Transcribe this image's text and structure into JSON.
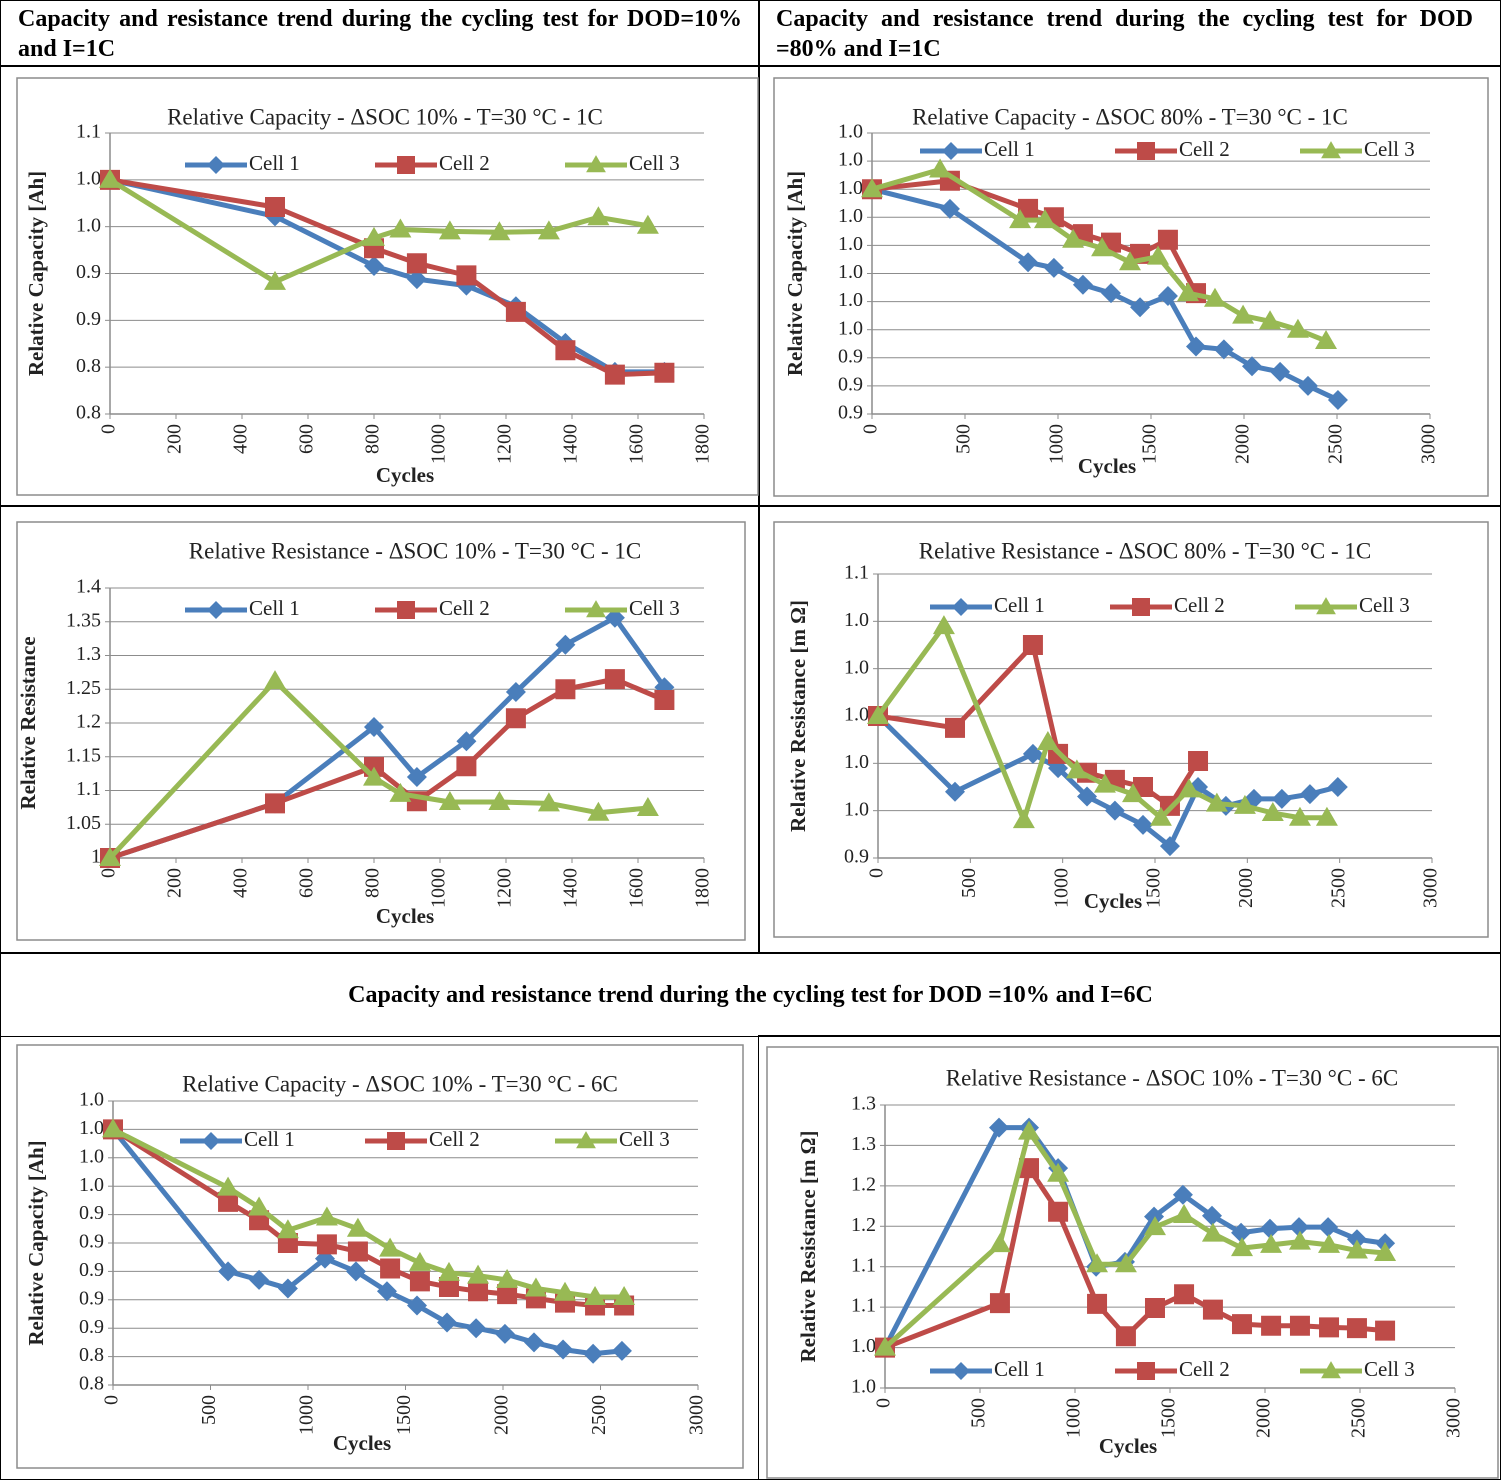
{
  "headers": [
    "Capacity and resistance trend during the cycling test for DOD=10% and I=1C",
    "Capacity and resistance trend during the cycling test for DOD =80% and I=1C",
    "Capacity and resistance trend during the cycling test for DOD =10% and I=6C"
  ],
  "chart_data": [
    {
      "type": "line",
      "title": "Relative Capacity - ΔSOC 10% - T=30 °C - 1C",
      "x_label": "Cycles",
      "y_label": "Relative Capacity [Ah]",
      "xlim": [
        0,
        1800
      ],
      "xticks": [
        0,
        200,
        400,
        600,
        800,
        1000,
        1200,
        1400,
        1600,
        1800
      ],
      "ylim": [
        0.8,
        1.1
      ],
      "yticks": [
        0.8,
        {
          "value": 0.85,
          "label": "0.8"
        },
        0.9,
        {
          "value": 0.95,
          "label": "0.9"
        },
        {
          "value": 1,
          "label": "1.0"
        },
        {
          "value": 1.05,
          "label": "1.0"
        },
        1.1
      ],
      "grid": true,
      "series": [
        {
          "name": "Cell 1",
          "color": "#4a7ebb",
          "marker": "diamond",
          "x": [
            0,
            500,
            800,
            930,
            1080,
            1230,
            1380,
            1530,
            1680
          ],
          "values": [
            1.05,
            1.011,
            0.958,
            0.944,
            0.937,
            0.915,
            0.876,
            0.845,
            0.845
          ]
        },
        {
          "name": "Cell 2",
          "color": "#be4b48",
          "marker": "square",
          "x": [
            0,
            500,
            800,
            930,
            1080,
            1230,
            1380,
            1530,
            1680
          ],
          "values": [
            1.05,
            1.021,
            0.977,
            0.961,
            0.948,
            0.909,
            0.868,
            0.842,
            0.844
          ]
        },
        {
          "name": "Cell 3",
          "color": "#98b954",
          "marker": "triangle",
          "x": [
            0,
            500,
            800,
            880,
            1030,
            1180,
            1330,
            1480,
            1630
          ],
          "values": [
            1.05,
            0.941,
            0.988,
            0.997,
            0.995,
            0.994,
            0.995,
            1.01,
            1.001
          ]
        }
      ]
    },
    {
      "type": "line",
      "title": "Relative Capacity - ΔSOC 80% - T=30 °C - 1C",
      "x_label": "Cycles",
      "y_label": "Relative Capacity [Ah]",
      "xlim": [
        0,
        3000
      ],
      "xticks": [
        0,
        500,
        1000,
        1500,
        2000,
        2500,
        3000
      ],
      "ylim": [
        0.92,
        1.02
      ],
      "yticks": [
        {
          "value": 0.92,
          "label": "0.9"
        },
        {
          "value": 0.93,
          "label": "0.9"
        },
        {
          "value": 0.94,
          "label": "0.9"
        },
        {
          "value": 0.95,
          "label": "1.0"
        },
        {
          "value": 0.96,
          "label": "1.0"
        },
        {
          "value": 0.97,
          "label": "1.0"
        },
        {
          "value": 0.98,
          "label": "1.0"
        },
        {
          "value": 0.99,
          "label": "1.0"
        },
        {
          "value": 1,
          "label": "1.0"
        },
        {
          "value": 1.01,
          "label": "1.0"
        },
        {
          "value": 1.02,
          "label": "1.0"
        }
      ],
      "grid": true,
      "series": [
        {
          "name": "Cell 1",
          "color": "#4a7ebb",
          "marker": "diamond",
          "x": [
            0,
            419,
            839,
            978,
            1134,
            1285,
            1441,
            1591,
            1742,
            1892,
            2043,
            2194,
            2344,
            2505
          ],
          "values": [
            1.0,
            0.993,
            0.974,
            0.972,
            0.966,
            0.963,
            0.958,
            0.962,
            0.944,
            0.943,
            0.937,
            0.935,
            0.93,
            0.925
          ]
        },
        {
          "name": "Cell 2",
          "color": "#be4b48",
          "marker": "square",
          "x": [
            0,
            419,
            839,
            978,
            1134,
            1285,
            1441,
            1591,
            1742
          ],
          "values": [
            1.0,
            1.003,
            0.993,
            0.99,
            0.984,
            0.981,
            0.977,
            0.982,
            0.963
          ]
        },
        {
          "name": "Cell 3",
          "color": "#98b954",
          "marker": "triangle",
          "x": [
            0,
            366,
            796,
            930,
            1081,
            1237,
            1387,
            1538,
            1699,
            1844,
            1995,
            2140,
            2290,
            2441
          ],
          "values": [
            1.0,
            1.007,
            0.989,
            0.989,
            0.982,
            0.979,
            0.974,
            0.976,
            0.963,
            0.961,
            0.955,
            0.953,
            0.95,
            0.946
          ]
        }
      ]
    },
    {
      "type": "line",
      "title": "Relative Resistance - ΔSOC 10% - T=30 °C - 1C",
      "x_label": "Cycles",
      "y_label": "Relative Resistance",
      "xlim": [
        0,
        1800
      ],
      "xticks": [
        0,
        200,
        400,
        600,
        800,
        1000,
        1200,
        1400,
        1600,
        1800
      ],
      "ylim": [
        1,
        1.4
      ],
      "yticks": [
        1,
        1.05,
        1.1,
        1.15,
        1.2,
        1.25,
        1.3,
        1.35,
        1.4
      ],
      "grid": true,
      "series": [
        {
          "name": "Cell 1",
          "color": "#4a7ebb",
          "marker": "diamond",
          "x": [
            0,
            500,
            800,
            930,
            1080,
            1230,
            1380,
            1530,
            1680
          ],
          "values": [
            1.0,
            1.081,
            1.194,
            1.12,
            1.173,
            1.246,
            1.316,
            1.356,
            1.253
          ]
        },
        {
          "name": "Cell 2",
          "color": "#be4b48",
          "marker": "square",
          "x": [
            0,
            500,
            800,
            930,
            1080,
            1230,
            1380,
            1530,
            1680
          ],
          "values": [
            1.0,
            1.081,
            1.135,
            1.084,
            1.136,
            1.207,
            1.25,
            1.265,
            1.234
          ]
        },
        {
          "name": "Cell 3",
          "color": "#98b954",
          "marker": "triangle",
          "x": [
            0,
            500,
            800,
            880,
            1030,
            1180,
            1330,
            1480,
            1630
          ],
          "values": [
            1.0,
            1.262,
            1.119,
            1.095,
            1.083,
            1.083,
            1.081,
            1.067,
            1.074
          ]
        }
      ]
    },
    {
      "type": "line",
      "title": "Relative Resistance - ΔSOC 80% - T=30 °C - 1C",
      "x_label": "Cycles",
      "y_label": "Relative Resistance [m Ω]",
      "xlim": [
        0,
        3000
      ],
      "xticks": [
        0,
        500,
        1000,
        1500,
        2000,
        2500,
        3000
      ],
      "ylim": [
        0.94,
        1.06
      ],
      "yticks": [
        {
          "value": 0.94,
          "label": "0.9"
        },
        {
          "value": 0.96,
          "label": "1.0"
        },
        {
          "value": 0.98,
          "label": "1.0"
        },
        {
          "value": 1,
          "label": "1.0"
        },
        {
          "value": 1.02,
          "label": "1.0"
        },
        {
          "value": 1.04,
          "label": "1.0"
        },
        {
          "value": 1.06,
          "label": "1.1"
        }
      ],
      "grid": true,
      "series": [
        {
          "name": "Cell 1",
          "color": "#4a7ebb",
          "marker": "diamond",
          "x": [
            0,
            417,
            839,
            975,
            1132,
            1283,
            1435,
            1581,
            1733,
            1884,
            2036,
            2187,
            2339,
            2490
          ],
          "values": [
            1.0,
            0.968,
            0.984,
            0.978,
            0.966,
            0.96,
            0.954,
            0.945,
            0.97,
            0.962,
            0.965,
            0.965,
            0.967,
            0.97
          ]
        },
        {
          "name": "Cell 2",
          "color": "#be4b48",
          "marker": "square",
          "x": [
            0,
            417,
            839,
            975,
            1132,
            1283,
            1435,
            1581,
            1733
          ],
          "values": [
            1.0,
            0.995,
            1.03,
            0.984,
            0.976,
            0.973,
            0.97,
            0.962,
            0.981
          ]
        },
        {
          "name": "Cell 3",
          "color": "#98b954",
          "marker": "triangle",
          "x": [
            0,
            357,
            790,
            920,
            1077,
            1229,
            1381,
            1532,
            1684,
            1835,
            1987,
            2138,
            2285,
            2431
          ],
          "values": [
            1.0,
            1.038,
            0.956,
            0.989,
            0.977,
            0.971,
            0.967,
            0.957,
            0.969,
            0.963,
            0.962,
            0.959,
            0.957,
            0.957
          ]
        }
      ]
    },
    {
      "type": "line",
      "title": "Relative Capacity - ΔSOC 10% - T=30 °C - 6C",
      "x_label": "Cycles",
      "y_label": "Relative Capacity [Ah]",
      "xlim": [
        0,
        3000
      ],
      "xticks": [
        0,
        500,
        1000,
        1500,
        2000,
        2500,
        3000
      ],
      "ylim": [
        0.82,
        1.02
      ],
      "yticks": [
        {
          "value": 0.82,
          "label": "0.8"
        },
        {
          "value": 0.84,
          "label": "0.8"
        },
        {
          "value": 0.86,
          "label": "0.9"
        },
        {
          "value": 0.88,
          "label": "0.9"
        },
        0.9,
        {
          "value": 0.92,
          "label": "0.9"
        },
        {
          "value": 0.94,
          "label": "0.9"
        },
        {
          "value": 0.96,
          "label": "1.0"
        },
        {
          "value": 0.98,
          "label": "1.0"
        },
        {
          "value": 1,
          "label": "1.0"
        },
        {
          "value": 1.02,
          "label": "1.0"
        }
      ],
      "grid": true,
      "series": [
        {
          "name": "Cell 1",
          "color": "#4a7ebb",
          "marker": "diamond",
          "x": [
            0,
            590,
            749,
            897,
            1087,
            1246,
            1405,
            1559,
            1713,
            1862,
            2010,
            2159,
            2308,
            2462,
            2610
          ],
          "values": [
            1.0,
            0.9,
            0.894,
            0.888,
            0.909,
            0.9,
            0.886,
            0.876,
            0.864,
            0.86,
            0.856,
            0.85,
            0.845,
            0.842,
            0.844
          ]
        },
        {
          "name": "Cell 2",
          "color": "#be4b48",
          "marker": "square",
          "x": [
            0,
            590,
            749,
            897,
            1097,
            1256,
            1421,
            1574,
            1723,
            1872,
            2021,
            2169,
            2318,
            2472,
            2621
          ],
          "values": [
            1.0,
            0.949,
            0.936,
            0.92,
            0.919,
            0.914,
            0.902,
            0.893,
            0.889,
            0.886,
            0.884,
            0.881,
            0.878,
            0.876,
            0.876
          ]
        },
        {
          "name": "Cell 3",
          "color": "#98b954",
          "marker": "triangle",
          "x": [
            0,
            590,
            749,
            897,
            1097,
            1256,
            1421,
            1574,
            1723,
            1872,
            2021,
            2169,
            2318,
            2472,
            2621
          ],
          "values": [
            1.0,
            0.959,
            0.945,
            0.929,
            0.938,
            0.93,
            0.916,
            0.906,
            0.899,
            0.897,
            0.894,
            0.888,
            0.885,
            0.882,
            0.882
          ]
        }
      ]
    },
    {
      "type": "line",
      "title": "Relative Resistance - ΔSOC 10% - T=30 °C - 6C",
      "x_label": "Cycles",
      "y_label": "Relative Resistance [m Ω]",
      "xlim": [
        0,
        3000
      ],
      "xticks": [
        0,
        500,
        1000,
        1500,
        2000,
        2500,
        3000
      ],
      "ylim": [
        0.95,
        1.3
      ],
      "yticks": [
        {
          "value": 0.95,
          "label": "1.0"
        },
        {
          "value": 1,
          "label": "1.0"
        },
        {
          "value": 1.05,
          "label": "1.1"
        },
        1.1,
        {
          "value": 1.15,
          "label": "1.2"
        },
        1.2,
        {
          "value": 1.25,
          "label": "1.3"
        },
        1.3
      ],
      "grid": true,
      "series": [
        {
          "name": "Cell 1",
          "color": "#4a7ebb",
          "marker": "diamond",
          "x": [
            0,
            600,
            758,
            911,
            1111,
            1263,
            1416,
            1568,
            1721,
            1874,
            2026,
            2179,
            2332,
            2484,
            2632
          ],
          "values": [
            1.0,
            1.272,
            1.272,
            1.222,
            1.1,
            1.106,
            1.162,
            1.189,
            1.163,
            1.142,
            1.147,
            1.149,
            1.149,
            1.134,
            1.129
          ]
        },
        {
          "name": "Cell 2",
          "color": "#be4b48",
          "marker": "square",
          "x": [
            0,
            605,
            758,
            911,
            1116,
            1268,
            1421,
            1574,
            1726,
            1879,
            2032,
            2184,
            2337,
            2484,
            2632
          ],
          "values": [
            1.0,
            1.055,
            1.222,
            1.168,
            1.054,
            1.014,
            1.049,
            1.066,
            1.047,
            1.029,
            1.027,
            1.027,
            1.025,
            1.024,
            1.021
          ]
        },
        {
          "name": "Cell 3",
          "color": "#98b954",
          "marker": "triangle",
          "x": [
            0,
            605,
            758,
            911,
            1116,
            1268,
            1421,
            1574,
            1726,
            1879,
            2032,
            2184,
            2337,
            2484,
            2632
          ],
          "values": [
            1.0,
            1.128,
            1.267,
            1.215,
            1.103,
            1.103,
            1.149,
            1.164,
            1.141,
            1.123,
            1.127,
            1.131,
            1.127,
            1.12,
            1.117
          ]
        }
      ]
    }
  ]
}
